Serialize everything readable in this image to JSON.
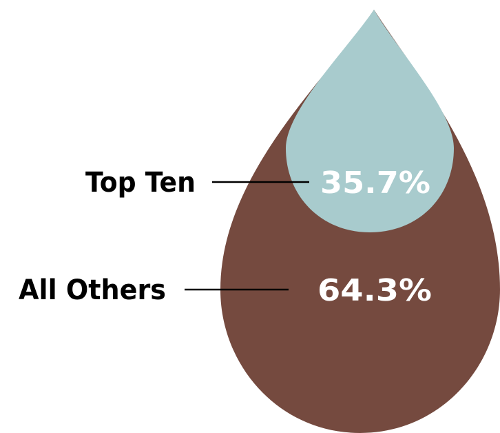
{
  "chart_data": {
    "type": "pie",
    "title": "",
    "categories": [
      "Top Ten",
      "All Others"
    ],
    "values": [
      35.7,
      64.3
    ],
    "value_labels": [
      "35.7%",
      "64.3%"
    ],
    "unit": "%",
    "colors": [
      "#a8cbcd",
      "#754a3f"
    ],
    "style": "nested droplet"
  }
}
